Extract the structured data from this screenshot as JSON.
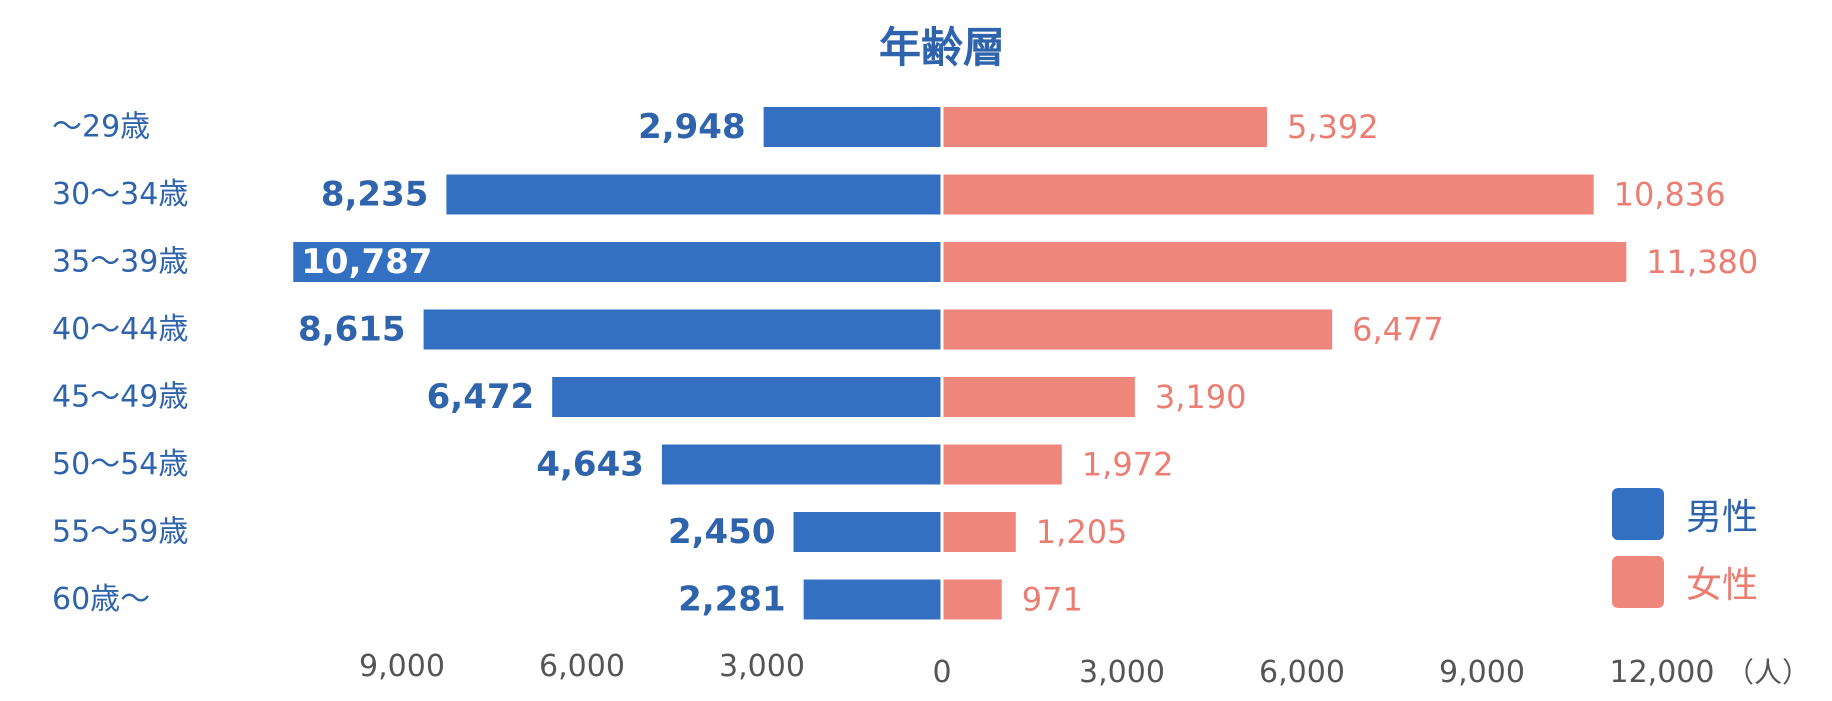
{
  "chart_data": {
    "type": "bar",
    "orientation": "horizontal",
    "layout": "population-pyramid",
    "title": "年齢層",
    "categories": [
      "～29歳",
      "30～34歳",
      "35～39歳",
      "40～44歳",
      "45～49歳",
      "50～54歳",
      "55～59歳",
      "60歳～"
    ],
    "series": [
      {
        "name": "男性",
        "side": "left",
        "color": "#3470c1",
        "label_color": "#2f64ad",
        "values": [
          2948,
          8235,
          10787,
          8615,
          6472,
          4643,
          2450,
          2281
        ],
        "value_labels": [
          "2,948",
          "8,235",
          "10,787",
          "8,615",
          "6,472",
          "4,643",
          "2,450",
          "2,281"
        ]
      },
      {
        "name": "女性",
        "side": "right",
        "color": "#ef867c",
        "label_color": "#ec7d72",
        "values": [
          5392,
          10836,
          11380,
          6477,
          3190,
          1972,
          1205,
          971
        ],
        "value_labels": [
          "5,392",
          "10,836",
          "11,380",
          "6,477",
          "3,190",
          "1,972",
          "1,205",
          "971"
        ]
      }
    ],
    "x_axis": {
      "left_ticks": [
        "9,000",
        "6,000",
        "3,000"
      ],
      "left_tick_values": [
        9000,
        6000,
        3000
      ],
      "zero_label": "0",
      "right_ticks": [
        "3,000",
        "6,000",
        "9,000",
        "12,000"
      ],
      "right_tick_values": [
        3000,
        6000,
        9000,
        12000
      ],
      "unit": "（人）",
      "left_range": [
        0,
        12000
      ],
      "right_range": [
        0,
        12000
      ]
    },
    "grid": false,
    "legend_position": "bottom-right",
    "category_label_color": "#2f64ad",
    "axis_label_color": "#555555"
  }
}
